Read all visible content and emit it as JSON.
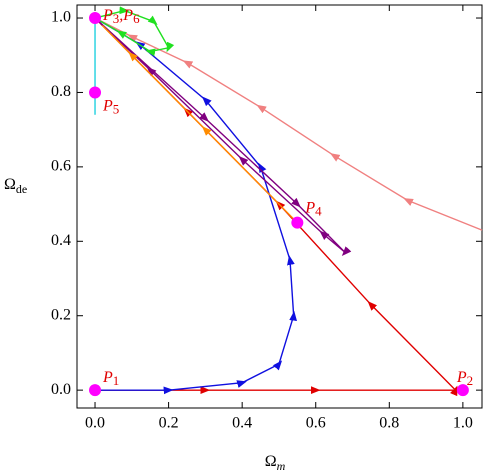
{
  "chart_data": {
    "type": "line",
    "xlabel": "Ω",
    "xlabel_sub": "m",
    "ylabel": "Ω",
    "ylabel_sub": "de",
    "xlim": [
      -0.049,
      1.052
    ],
    "ylim": [
      -0.048,
      1.035
    ],
    "xticks": [
      {
        "value": 0,
        "label": "0.0"
      },
      {
        "value": 0.2,
        "label": "0.2"
      },
      {
        "value": 0.4,
        "label": "0.4"
      },
      {
        "value": 0.6,
        "label": "0.6"
      },
      {
        "value": 0.8,
        "label": "0.8"
      },
      {
        "value": 1,
        "label": "1.0"
      }
    ],
    "yticks": [
      {
        "value": 0,
        "label": "0.0"
      },
      {
        "value": 0.2,
        "label": "0.2"
      },
      {
        "value": 0.4,
        "label": "0.4"
      },
      {
        "value": 0.6,
        "label": "0.6"
      },
      {
        "value": 0.8,
        "label": "0.8"
      },
      {
        "value": 1,
        "label": "1.0"
      }
    ],
    "series": [
      {
        "color": "#f08080",
        "x": [
          1.052,
          0.85,
          0.65,
          0.45,
          0.25,
          0.1,
          0.0
        ],
        "y": [
          0.43,
          0.51,
          0.63,
          0.76,
          0.88,
          0.95,
          1.0
        ]
      },
      {
        "color": "#e00000",
        "x": [
          0.0,
          0.3,
          0.6,
          0.98,
          0.75,
          0.5,
          0.25,
          0.0
        ],
        "y": [
          0.0,
          0.0,
          0.0,
          0.0,
          0.23,
          0.5,
          0.75,
          1.0
        ]
      },
      {
        "color": "#1010e0",
        "x": [
          0.0,
          0.2,
          0.4,
          0.5,
          0.54,
          0.53,
          0.45,
          0.3,
          0.12,
          0.0
        ],
        "y": [
          0.0,
          0.0,
          0.02,
          0.07,
          0.2,
          0.35,
          0.6,
          0.78,
          0.93,
          1.0
        ]
      },
      {
        "color": "#800080",
        "x": [
          0.0,
          0.3,
          0.55,
          0.68,
          0.62,
          0.4,
          0.15,
          0.0
        ],
        "y": [
          1.0,
          0.73,
          0.5,
          0.37,
          0.42,
          0.62,
          0.86,
          1.0
        ]
      },
      {
        "color": "#ff8c00",
        "x": [
          0.55,
          0.3,
          0.1,
          0.02
        ],
        "y": [
          0.45,
          0.7,
          0.9,
          0.98
        ]
      },
      {
        "color": "#20e020",
        "x": [
          0.0,
          0.08,
          0.16,
          0.2,
          0.15,
          0.07,
          0.0
        ],
        "y": [
          1.0,
          1.02,
          0.99,
          0.92,
          0.91,
          0.96,
          1.0
        ]
      },
      {
        "color": "#20d0e0",
        "x": [
          0.0,
          0.0
        ],
        "y": [
          0.74,
          1.0
        ]
      }
    ],
    "points": [
      {
        "x": 0,
        "y": 0,
        "label": "P1"
      },
      {
        "x": 1,
        "y": 0,
        "label": "P2"
      },
      {
        "x": 0,
        "y": 1,
        "label": "P3,P6"
      },
      {
        "x": 0.55,
        "y": 0.45,
        "label": "P4"
      },
      {
        "x": 0,
        "y": 0.8,
        "label": "P5"
      }
    ],
    "point_color": "#ff00ff"
  }
}
